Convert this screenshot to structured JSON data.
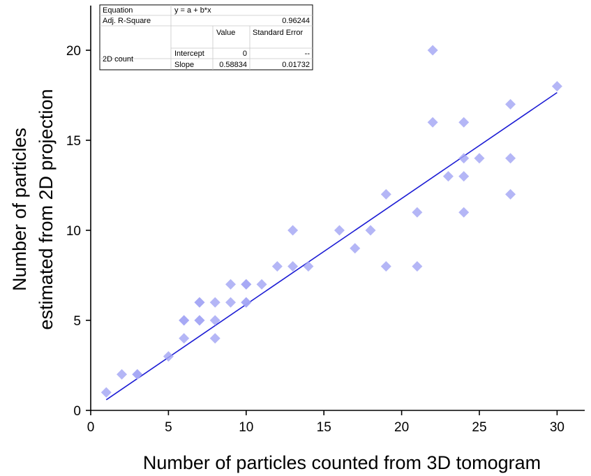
{
  "chart_data": {
    "type": "scatter",
    "xlabel": "Number of particles counted from 3D tomogram",
    "ylabel_lines": [
      "Number of particles",
      "estimated from 2D projection"
    ],
    "xlim": [
      0,
      32
    ],
    "ylim": [
      0,
      23
    ],
    "xticks": [
      0,
      5,
      10,
      15,
      20,
      25,
      30
    ],
    "yticks": [
      0,
      5,
      10,
      15,
      20
    ],
    "marker_color": "#a4a6f4",
    "fit_line_color": "#1c1cd4",
    "points": [
      [
        1,
        1
      ],
      [
        2,
        2
      ],
      [
        3,
        2
      ],
      [
        3,
        2
      ],
      [
        5,
        3
      ],
      [
        6,
        4
      ],
      [
        6,
        5
      ],
      [
        6,
        5
      ],
      [
        7,
        5
      ],
      [
        7,
        5
      ],
      [
        7,
        6
      ],
      [
        7,
        6
      ],
      [
        8,
        4
      ],
      [
        8,
        5
      ],
      [
        8,
        6
      ],
      [
        9,
        6
      ],
      [
        9,
        7
      ],
      [
        10,
        6
      ],
      [
        10,
        6
      ],
      [
        10,
        7
      ],
      [
        10,
        7
      ],
      [
        11,
        7
      ],
      [
        12,
        8
      ],
      [
        13,
        8
      ],
      [
        13,
        10
      ],
      [
        14,
        8
      ],
      [
        16,
        10
      ],
      [
        17,
        9
      ],
      [
        18,
        10
      ],
      [
        19,
        8
      ],
      [
        19,
        12
      ],
      [
        21,
        8
      ],
      [
        21,
        11
      ],
      [
        22,
        16
      ],
      [
        22,
        20
      ],
      [
        23,
        13
      ],
      [
        24,
        11
      ],
      [
        24,
        13
      ],
      [
        24,
        14
      ],
      [
        24,
        16
      ],
      [
        25,
        14
      ],
      [
        27,
        12
      ],
      [
        27,
        14
      ],
      [
        27,
        17
      ],
      [
        30,
        18
      ]
    ],
    "fit": {
      "intercept": 0,
      "slope": 0.58834,
      "x_range": [
        1,
        30
      ]
    },
    "stats_table": {
      "r1": [
        "Equation",
        "y = a + b*x"
      ],
      "r2": [
        "Adj. R-Square",
        "0.96244"
      ],
      "r3": [
        "Value",
        "Standard Error"
      ],
      "row_group": "2D count",
      "r4": [
        "Intercept",
        "0",
        "--"
      ],
      "r5": [
        "Slope",
        "0.58834",
        "0.01732"
      ]
    }
  }
}
